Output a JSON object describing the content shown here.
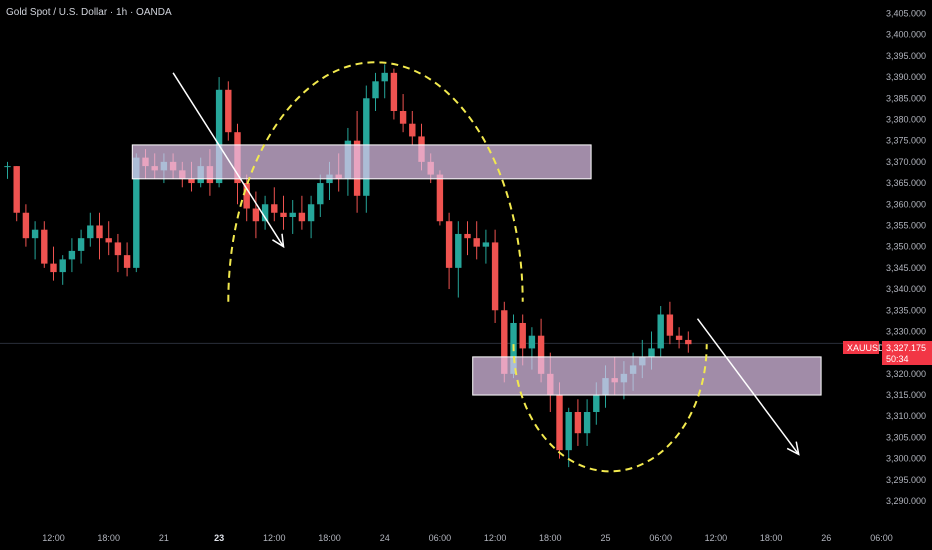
{
  "header": {
    "title": "Gold Spot / U.S. Dollar · 1h · OANDA"
  },
  "price_tag": {
    "symbol": "XAUUSD",
    "price": "3,327.175",
    "countdown": "50:34"
  },
  "colors": {
    "background": "#000000",
    "up": "#26a69a",
    "down": "#ef5350",
    "zone_fill": "#e6c8f0",
    "zone_border": "#ffffff",
    "curve": "#f2e94e",
    "arrow": "#ffffff",
    "price_tag": "#f23645"
  },
  "chart_data": {
    "type": "candlestick",
    "symbol": "XAUUSD",
    "timeframe": "1h",
    "y_axis": {
      "side": "right",
      "range": [
        3286,
        3407
      ],
      "ticks": [
        "3,405.000",
        "3,400.000",
        "3,395.000",
        "3,390.000",
        "3,385.000",
        "3,380.000",
        "3,375.000",
        "3,370.000",
        "3,365.000",
        "3,360.000",
        "3,355.000",
        "3,350.000",
        "3,345.000",
        "3,340.000",
        "3,335.000",
        "3,330.000",
        "3,325.000",
        "3,320.000",
        "3,315.000",
        "3,310.000",
        "3,305.000",
        "3,300.000",
        "3,295.000",
        "3,290.000"
      ]
    },
    "x_axis": {
      "ticks": [
        {
          "label": "12:00",
          "bar": 5
        },
        {
          "label": "18:00",
          "bar": 11
        },
        {
          "label": "21",
          "bar": 17
        },
        {
          "label": "23",
          "bar": 23,
          "bold": true
        },
        {
          "label": "12:00",
          "bar": 29
        },
        {
          "label": "18:00",
          "bar": 35
        },
        {
          "label": "24",
          "bar": 41
        },
        {
          "label": "06:00",
          "bar": 47
        },
        {
          "label": "12:00",
          "bar": 53
        },
        {
          "label": "18:00",
          "bar": 59
        },
        {
          "label": "25",
          "bar": 65
        },
        {
          "label": "06:00",
          "bar": 71
        },
        {
          "label": "12:00",
          "bar": 77
        },
        {
          "label": "18:00",
          "bar": 83
        },
        {
          "label": "26",
          "bar": 89
        },
        {
          "label": "06:00",
          "bar": 95
        }
      ]
    },
    "candles": [
      [
        3369,
        3370,
        3366,
        3369
      ],
      [
        3369,
        3369,
        3356,
        3358
      ],
      [
        3358,
        3360,
        3350,
        3352
      ],
      [
        3352,
        3356,
        3347,
        3354
      ],
      [
        3354,
        3356,
        3345,
        3346
      ],
      [
        3346,
        3350,
        3342,
        3344
      ],
      [
        3344,
        3348,
        3341,
        3347
      ],
      [
        3347,
        3352,
        3344,
        3349
      ],
      [
        3349,
        3354,
        3346,
        3352
      ],
      [
        3352,
        3358,
        3350,
        3355
      ],
      [
        3355,
        3358,
        3347,
        3352
      ],
      [
        3352,
        3356,
        3348,
        3351
      ],
      [
        3351,
        3353,
        3344,
        3348
      ],
      [
        3348,
        3351,
        3343,
        3345
      ],
      [
        3345,
        3372,
        3344,
        3371
      ],
      [
        3371,
        3373,
        3366,
        3369
      ],
      [
        3369,
        3372,
        3366,
        3368
      ],
      [
        3368,
        3372,
        3365,
        3370
      ],
      [
        3370,
        3372,
        3366,
        3368
      ],
      [
        3368,
        3370,
        3364,
        3366
      ],
      [
        3366,
        3370,
        3363,
        3365
      ],
      [
        3365,
        3371,
        3364,
        3369
      ],
      [
        3369,
        3373,
        3362,
        3365
      ],
      [
        3365,
        3390,
        3364,
        3387
      ],
      [
        3387,
        3389,
        3375,
        3377
      ],
      [
        3377,
        3379,
        3360,
        3365
      ],
      [
        3365,
        3367,
        3356,
        3359
      ],
      [
        3359,
        3363,
        3352,
        3356
      ],
      [
        3356,
        3362,
        3354,
        3360
      ],
      [
        3360,
        3364,
        3356,
        3358
      ],
      [
        3358,
        3362,
        3354,
        3357
      ],
      [
        3357,
        3361,
        3353,
        3358
      ],
      [
        3358,
        3362,
        3354,
        3356
      ],
      [
        3356,
        3362,
        3352,
        3360
      ],
      [
        3360,
        3367,
        3357,
        3365
      ],
      [
        3365,
        3370,
        3361,
        3367
      ],
      [
        3367,
        3372,
        3363,
        3366
      ],
      [
        3366,
        3378,
        3362,
        3375
      ],
      [
        3375,
        3382,
        3358,
        3362
      ],
      [
        3362,
        3388,
        3358,
        3385
      ],
      [
        3385,
        3391,
        3382,
        3389
      ],
      [
        3389,
        3393,
        3385,
        3391
      ],
      [
        3391,
        3392,
        3380,
        3382
      ],
      [
        3382,
        3386,
        3377,
        3379
      ],
      [
        3379,
        3382,
        3374,
        3376
      ],
      [
        3376,
        3379,
        3368,
        3370
      ],
      [
        3370,
        3372,
        3365,
        3367
      ],
      [
        3367,
        3368,
        3355,
        3356
      ],
      [
        3356,
        3358,
        3340,
        3345
      ],
      [
        3345,
        3356,
        3338,
        3353
      ],
      [
        3353,
        3356,
        3348,
        3352
      ],
      [
        3352,
        3356,
        3347,
        3350
      ],
      [
        3350,
        3354,
        3346,
        3351
      ],
      [
        3351,
        3354,
        3332,
        3335
      ],
      [
        3335,
        3337,
        3318,
        3320
      ],
      [
        3320,
        3334,
        3319,
        3332
      ],
      [
        3332,
        3334,
        3322,
        3326
      ],
      [
        3326,
        3331,
        3321,
        3329
      ],
      [
        3329,
        3333,
        3318,
        3320
      ],
      [
        3320,
        3325,
        3311,
        3315
      ],
      [
        3315,
        3318,
        3300,
        3302
      ],
      [
        3302,
        3312,
        3298,
        3311
      ],
      [
        3311,
        3314,
        3303,
        3306
      ],
      [
        3306,
        3314,
        3303,
        3311
      ],
      [
        3311,
        3318,
        3308,
        3315
      ],
      [
        3315,
        3322,
        3312,
        3319
      ],
      [
        3319,
        3324,
        3315,
        3318
      ],
      [
        3318,
        3323,
        3314,
        3320
      ],
      [
        3320,
        3325,
        3316,
        3322
      ],
      [
        3322,
        3328,
        3319,
        3324
      ],
      [
        3324,
        3330,
        3321,
        3326
      ],
      [
        3326,
        3336,
        3324,
        3334
      ],
      [
        3334,
        3337,
        3327,
        3329
      ],
      [
        3329,
        3331,
        3326,
        3328
      ],
      [
        3328,
        3330,
        3325,
        3327
      ]
    ],
    "current_price": 3327.175,
    "drawings": {
      "zones": [
        {
          "from_bar": 14,
          "to_bar": 63,
          "top": 3374,
          "bottom": 3366
        },
        {
          "from_bar": 51,
          "to_bar": 88,
          "top": 3324,
          "bottom": 3315
        }
      ],
      "curves": [
        {
          "kind": "arc",
          "from_bar": 24,
          "to_bar": 56,
          "base": 3337,
          "peak": 3393.5
        },
        {
          "kind": "arc",
          "from_bar": 55,
          "to_bar": 76,
          "base": 3327,
          "peak": 3297
        }
      ],
      "arrows": [
        {
          "from": [
            18,
            3391
          ],
          "to": [
            30,
            3350
          ]
        },
        {
          "from": [
            75,
            3333
          ],
          "to": [
            86,
            3301
          ]
        }
      ]
    }
  }
}
